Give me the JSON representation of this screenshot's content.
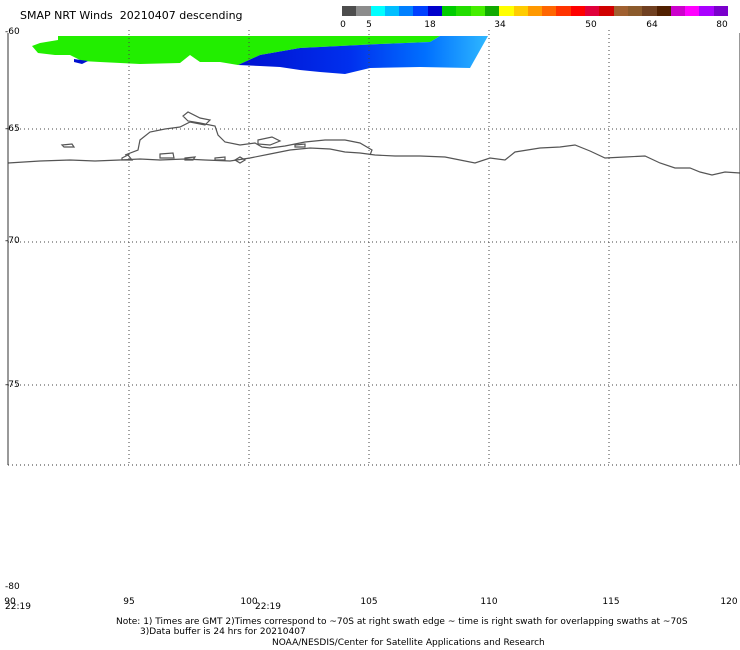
{
  "title": "SMAP NRT Winds  20210407 descending",
  "scale": {
    "labels": [
      "0",
      "5",
      "18",
      "34",
      "50",
      "64",
      "80"
    ],
    "colors": [
      "#4d4d4d",
      "#8c8c8c",
      "#00ffff",
      "#00bfff",
      "#0080ff",
      "#0040ff",
      "#0000cc",
      "#00cc00",
      "#22dd00",
      "#44ee00",
      "#11aa00",
      "#ffff00",
      "#ffcc00",
      "#ff9900",
      "#ff6600",
      "#ff3300",
      "#ff0000",
      "#e0003a",
      "#d00000",
      "#a06030",
      "#8b5a2b",
      "#704020",
      "#502000",
      "#cc00cc",
      "#ff00ff",
      "#aa00ff",
      "#7a00cc"
    ]
  },
  "map": {
    "lat_labels": [
      "-60",
      "-65",
      "-70",
      "-75",
      "-80"
    ],
    "lon_labels": [
      "90",
      "95",
      "100",
      "105",
      "110",
      "115",
      "120"
    ],
    "times": [
      "22:19",
      "22:19"
    ]
  },
  "notes": {
    "line1": "Note: 1) Times are GMT 2)Times correspond to ~70S at right swath edge ~ time is right swath for overlapping swaths at ~70S",
    "line2": "3)Data buffer is 24 hrs for 20210407",
    "line3": "NOAA/NESDIS/Center for Satellite Applications and Research"
  }
}
